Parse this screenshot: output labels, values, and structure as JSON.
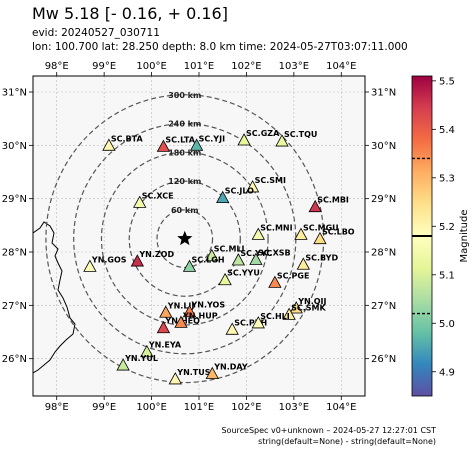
{
  "header": {
    "title": "Mw 5.18 [- 0.16, + 0.16]",
    "evid": "evid: 20240527_030711",
    "params": "lon: 100.700 lat: 28.250 depth: 8.0 km time: 2024-05-27T03:07:11.000"
  },
  "map": {
    "lon_range": [
      97.5,
      104.5
    ],
    "lat_range": [
      25.3,
      31.3
    ],
    "lon_ticks": [
      98,
      99,
      100,
      101,
      102,
      103,
      104
    ],
    "lon_tick_labels": [
      "98°E",
      "99°E",
      "100°E",
      "101°E",
      "102°E",
      "103°E",
      "104°E"
    ],
    "lat_ticks": [
      26,
      27,
      28,
      29,
      30,
      31
    ],
    "lat_tick_labels": [
      "26°N",
      "27°N",
      "28°N",
      "29°N",
      "30°N",
      "31°N"
    ],
    "epicenter": {
      "lon": 100.7,
      "lat": 28.25,
      "symbol": "black-star"
    },
    "range_rings": [
      {
        "label": "60 km"
      },
      {
        "label": "120 km"
      },
      {
        "label": "180 km"
      },
      {
        "label": "240 km"
      },
      {
        "label": "300 km"
      }
    ],
    "stations": [
      {
        "name": "SC.BTA",
        "lon": 99.1,
        "lat": 30.0,
        "mag": 5.2
      },
      {
        "name": "SC.LTA",
        "lon": 100.25,
        "lat": 29.98,
        "mag": 5.42
      },
      {
        "name": "SC.YJI",
        "lon": 100.95,
        "lat": 30.0,
        "mag": 4.97
      },
      {
        "name": "SC.GZA",
        "lon": 101.95,
        "lat": 30.1,
        "mag": 5.12
      },
      {
        "name": "SC.TQU",
        "lon": 102.75,
        "lat": 30.08,
        "mag": 5.13
      },
      {
        "name": "SC.SMI",
        "lon": 102.13,
        "lat": 29.22,
        "mag": 5.2
      },
      {
        "name": "SC.MBI",
        "lon": 103.45,
        "lat": 28.85,
        "mag": 5.45
      },
      {
        "name": "SC.JLO",
        "lon": 101.5,
        "lat": 29.02,
        "mag": 4.95
      },
      {
        "name": "SC.XCE",
        "lon": 99.75,
        "lat": 28.93,
        "mag": 5.15
      },
      {
        "name": "SC.MNI",
        "lon": 102.25,
        "lat": 28.33,
        "mag": 5.15
      },
      {
        "name": "SC.MGU",
        "lon": 103.15,
        "lat": 28.33,
        "mag": 5.22
      },
      {
        "name": "SC.LBO",
        "lon": 103.55,
        "lat": 28.25,
        "mag": 5.25
      },
      {
        "name": "YN.GOS",
        "lon": 98.7,
        "lat": 27.73,
        "mag": 5.17
      },
      {
        "name": "YN.ZOD",
        "lon": 99.7,
        "lat": 27.83,
        "mag": 5.46
      },
      {
        "name": "SC.MLI",
        "lon": 101.27,
        "lat": 27.93,
        "mag": 5.08
      },
      {
        "name": "SC.LGH",
        "lon": 100.8,
        "lat": 27.73,
        "mag": 5.02
      },
      {
        "name": "SC.YYC",
        "lon": 101.83,
        "lat": 27.85,
        "mag": 5.07
      },
      {
        "name": "SC.XSB",
        "lon": 102.2,
        "lat": 27.86,
        "mag": 5.04
      },
      {
        "name": "SC.YYU",
        "lon": 101.55,
        "lat": 27.48,
        "mag": 5.12
      },
      {
        "name": "SC.BYD",
        "lon": 103.2,
        "lat": 27.77,
        "mag": 5.22
      },
      {
        "name": "SC.PGE",
        "lon": 102.6,
        "lat": 27.43,
        "mag": 5.35
      },
      {
        "name": "YN.LIJ",
        "lon": 100.3,
        "lat": 26.87,
        "mag": 5.32
      },
      {
        "name": "YN.YOS",
        "lon": 100.8,
        "lat": 26.88,
        "mag": 5.36
      },
      {
        "name": "YN.QIJ",
        "lon": 103.05,
        "lat": 26.95,
        "mag": 5.25
      },
      {
        "name": "SC.SMK",
        "lon": 102.9,
        "lat": 26.83,
        "mag": 5.22
      },
      {
        "name": "YN.HEQ",
        "lon": 100.25,
        "lat": 26.58,
        "mag": 5.43
      },
      {
        "name": "YN.HUP",
        "lon": 100.62,
        "lat": 26.68,
        "mag": 5.35
      },
      {
        "name": "SC.PZH",
        "lon": 101.7,
        "lat": 26.55,
        "mag": 5.2
      },
      {
        "name": "SC.HLI",
        "lon": 102.25,
        "lat": 26.67,
        "mag": 5.17
      },
      {
        "name": "YN.EYA",
        "lon": 99.9,
        "lat": 26.13,
        "mag": 5.1
      },
      {
        "name": "YN.YUL",
        "lon": 99.4,
        "lat": 25.88,
        "mag": 5.08
      },
      {
        "name": "YN.TUS",
        "lon": 100.5,
        "lat": 25.62,
        "mag": 5.2
      },
      {
        "name": "YN.DAY",
        "lon": 101.28,
        "lat": 25.72,
        "mag": 5.3
      }
    ],
    "colors": {
      "border": "#000000",
      "ring": "#555555",
      "background": "#f7f7f7"
    }
  },
  "colorbar": {
    "label": "Magnitude",
    "range": [
      4.85,
      5.51
    ],
    "ticks": [
      4.9,
      5.0,
      5.1,
      5.2,
      5.3,
      5.4,
      5.5
    ],
    "tick_labels": [
      "4.9",
      "5.0",
      "5.1",
      "5.2",
      "5.3",
      "5.4",
      "5.5"
    ],
    "median": 5.18,
    "lower": 5.02,
    "upper": 5.34
  },
  "footer": {
    "line1": "SourceSpec v0+unknown – 2024-05-27 12:27:01 CST",
    "line2": "string(default=None) - string(default=None)"
  }
}
